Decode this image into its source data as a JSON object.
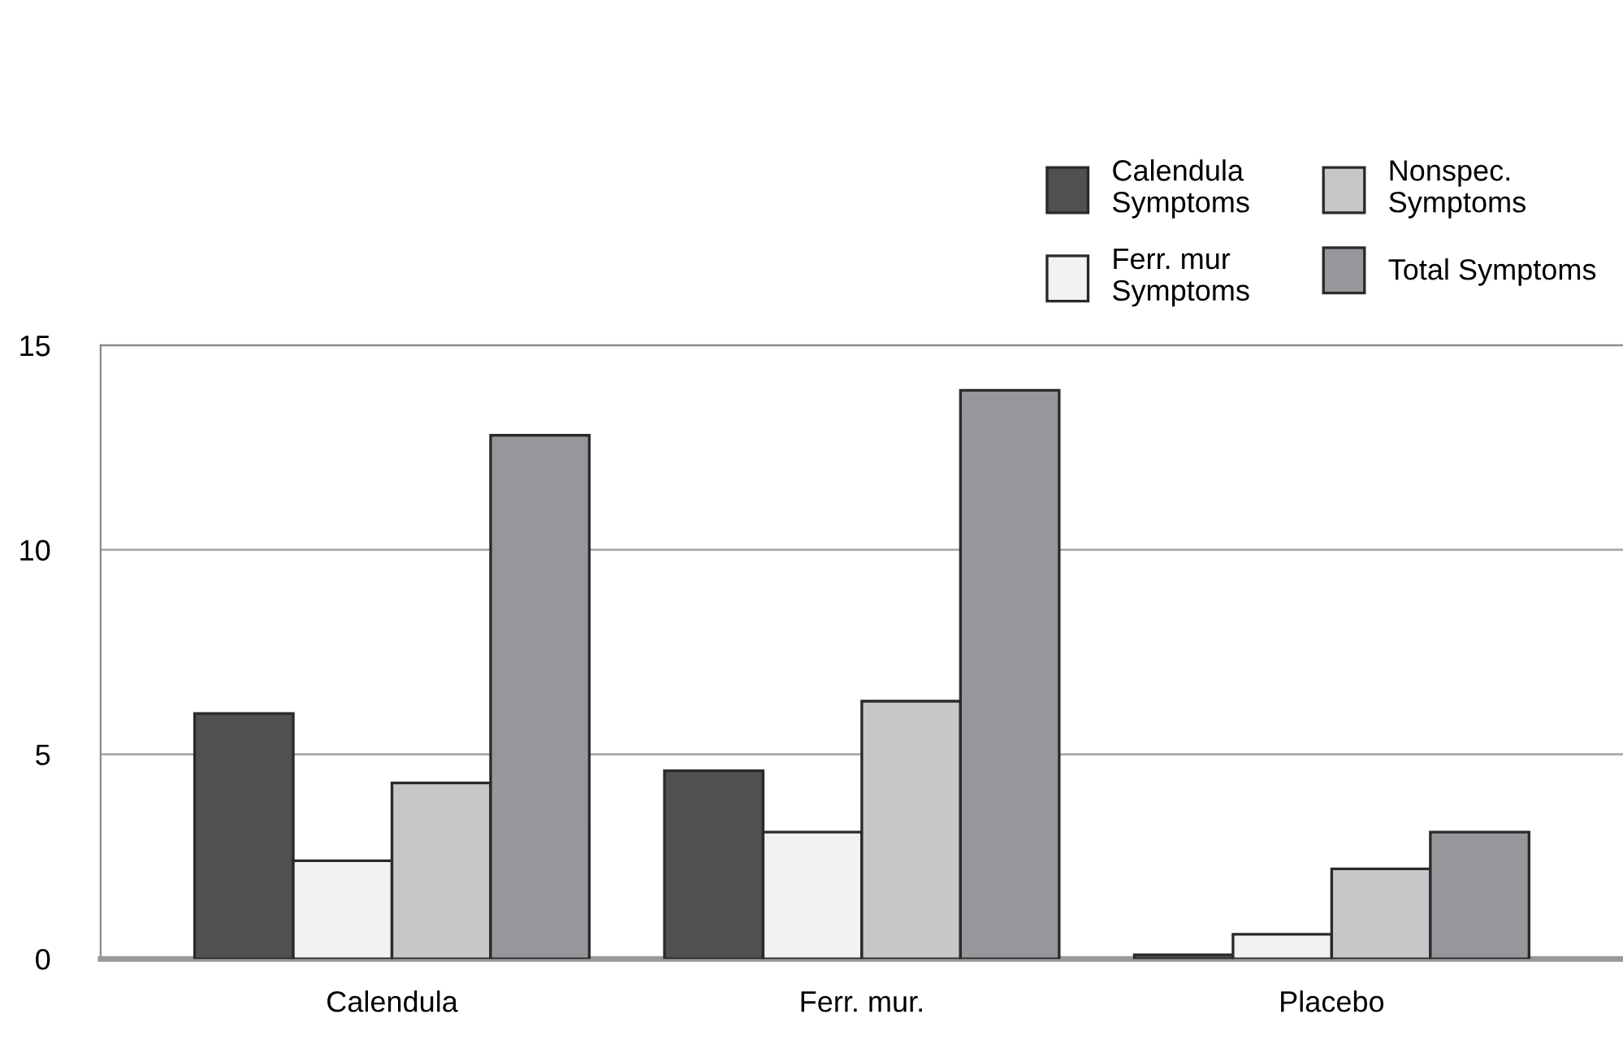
{
  "chart_data": {
    "type": "bar",
    "categories": [
      "Calendula",
      "Ferr. mur.",
      "Placebo"
    ],
    "series": [
      {
        "name": "Calendula\nSymptoms",
        "color": "#505052",
        "values": [
          6.0,
          4.6,
          0.1
        ]
      },
      {
        "name": "Ferr. mur\nSymptoms",
        "color": "#f1f2f4",
        "values": [
          2.4,
          3.1,
          0.6
        ]
      },
      {
        "name": "Nonspec.\nSymptoms",
        "color": "#c6c7c9",
        "values": [
          4.3,
          6.3,
          2.2
        ]
      },
      {
        "name": "Total Symptoms",
        "color": "#96979b",
        "values": [
          12.8,
          13.9,
          3.1
        ]
      }
    ],
    "ylim": [
      0,
      15
    ],
    "yticks": [
      0,
      5,
      10,
      15
    ],
    "grid": "y",
    "legend": "top right"
  }
}
